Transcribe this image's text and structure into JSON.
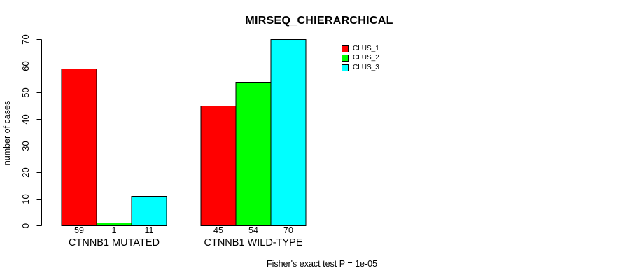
{
  "chart_data": {
    "type": "bar",
    "title": "MIRSEQ_CHIERARCHICAL",
    "ylabel": "number of cases",
    "xlabel": "",
    "categories": [
      "CTNNB1 MUTATED",
      "CTNNB1 WILD-TYPE"
    ],
    "series": [
      {
        "name": "CLUS_1",
        "color": "#ff0000",
        "values": [
          59,
          45
        ]
      },
      {
        "name": "CLUS_2",
        "color": "#00ff00",
        "values": [
          1,
          54
        ]
      },
      {
        "name": "CLUS_3",
        "color": "#00ffff",
        "values": [
          11,
          70
        ]
      }
    ],
    "bar_value_labels": [
      [
        "59",
        "1",
        "11"
      ],
      [
        "45",
        "54",
        "70"
      ]
    ],
    "ylim": [
      0,
      70
    ],
    "yticks": [
      0,
      10,
      20,
      30,
      40,
      50,
      60,
      70
    ],
    "grid": false,
    "legend_position": "top-right",
    "bar_border_color": "#000000",
    "annotation": "Fisher's exact test P = 1e-05"
  }
}
